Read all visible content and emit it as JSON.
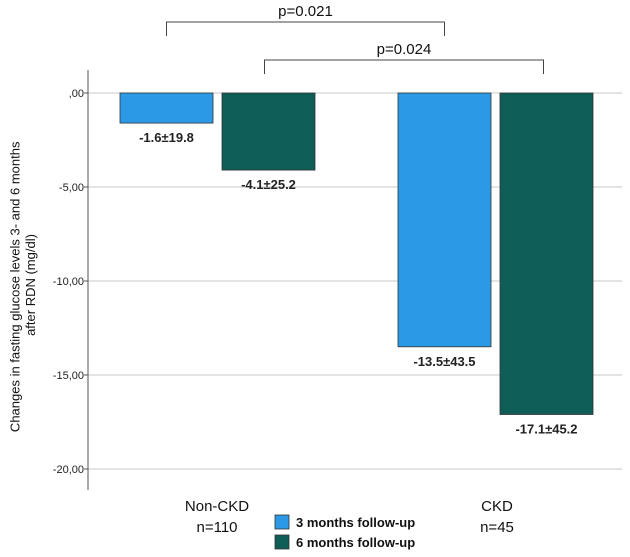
{
  "chart_data": {
    "type": "bar",
    "ylabel_line1": "Changes in fasting glucose levels 3- and 6 months",
    "ylabel_line2": "after RDN (mg/dl)",
    "ylim": [
      -21,
      0.5
    ],
    "yticks": [
      0,
      -5,
      -10,
      -15,
      -20
    ],
    "ytick_labels": [
      ",00",
      "-5,00",
      "-10,00",
      "-15,00",
      "-20,00"
    ],
    "categories": [
      {
        "name": "Non-CKD",
        "n": "n=110"
      },
      {
        "name": "CKD",
        "n": "n=45"
      }
    ],
    "series": [
      {
        "name": "3 months follow-up",
        "color": "#2b99e6",
        "values": [
          -1.6,
          -13.5
        ],
        "labels": [
          "-1.6±19.8",
          "-13.5±43.5"
        ]
      },
      {
        "name": "6 months follow-up",
        "color": "#0e5e57",
        "values": [
          -4.1,
          -17.1
        ],
        "labels": [
          "-4.1±25.2",
          "-17.1±45.2"
        ]
      }
    ],
    "comparisons": [
      {
        "text": "p=0.021",
        "from_bar": [
          0,
          0
        ],
        "to_bar": [
          1,
          0
        ]
      },
      {
        "text": "p=0.024",
        "from_bar": [
          0,
          1
        ],
        "to_bar": [
          1,
          1
        ]
      }
    ],
    "grid": true,
    "legend": "bottom-center"
  }
}
